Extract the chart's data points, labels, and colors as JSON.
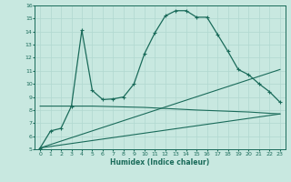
{
  "xlabel": "Humidex (Indice chaleur)",
  "bg_color": "#c8e8e0",
  "grid_color": "#b0d8d0",
  "line_color": "#1a6b5a",
  "xlim": [
    -0.5,
    23.5
  ],
  "ylim": [
    5,
    16
  ],
  "xticks": [
    0,
    1,
    2,
    3,
    4,
    5,
    6,
    7,
    8,
    9,
    10,
    11,
    12,
    13,
    14,
    15,
    16,
    17,
    18,
    19,
    20,
    21,
    22,
    23
  ],
  "yticks": [
    5,
    6,
    7,
    8,
    9,
    10,
    11,
    12,
    13,
    14,
    15,
    16
  ],
  "curve1_x": [
    0,
    1,
    2,
    3,
    4,
    5,
    6,
    7,
    8,
    9,
    10,
    11,
    12,
    13,
    14,
    15,
    16,
    17,
    18,
    19,
    20,
    21,
    22,
    23
  ],
  "curve1_y": [
    5.1,
    6.4,
    6.6,
    8.3,
    14.1,
    9.5,
    8.8,
    8.85,
    9.0,
    10.0,
    12.3,
    13.9,
    15.2,
    15.6,
    15.6,
    15.1,
    15.1,
    13.8,
    12.5,
    11.1,
    10.7,
    10.0,
    9.4,
    8.6
  ],
  "curve2_x": [
    0,
    23
  ],
  "curve2_y": [
    5.1,
    11.1
  ],
  "curve3_x": [
    0,
    23
  ],
  "curve3_y": [
    5.1,
    7.7
  ],
  "curve4_x": [
    0,
    5,
    10,
    15,
    20,
    21,
    22,
    23
  ],
  "curve4_y": [
    8.3,
    8.3,
    8.2,
    8.0,
    7.85,
    7.8,
    7.75,
    7.7
  ]
}
